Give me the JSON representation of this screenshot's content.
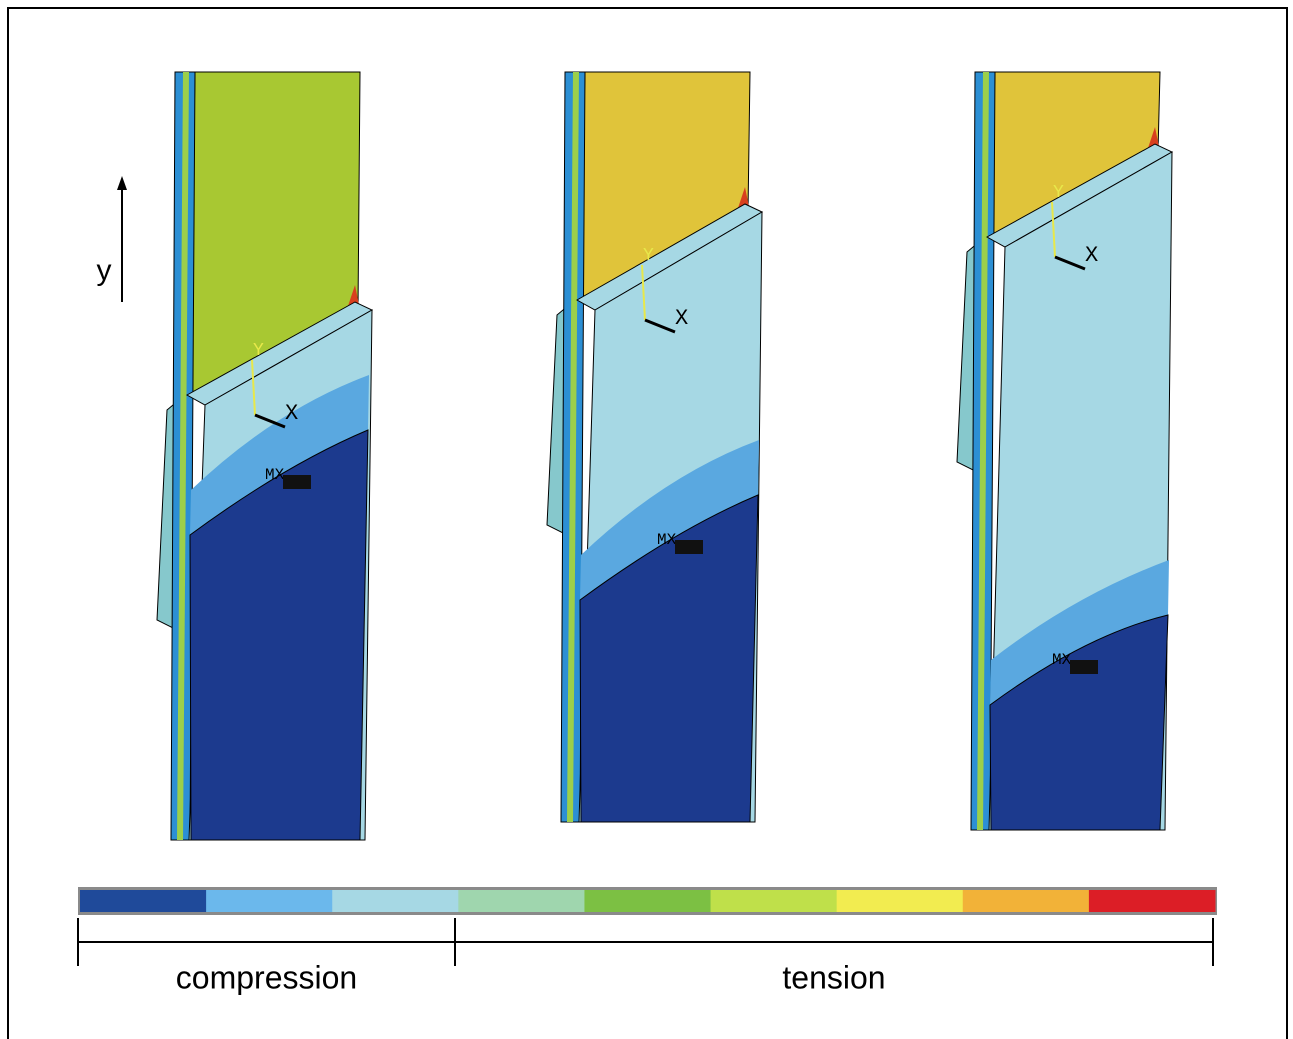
{
  "figure": {
    "axis_label": "y",
    "panels": [
      {
        "x_label": "X",
        "y_label": "Y",
        "marker": "MX"
      },
      {
        "x_label": "X",
        "y_label": "Y",
        "marker": "MX"
      },
      {
        "x_label": "X",
        "y_label": "Y",
        "marker": "MX"
      }
    ],
    "scale": {
      "colors": [
        "#1f4a9a",
        "#6bb8ec",
        "#a6d8e4",
        "#9fd6ae",
        "#7cc043",
        "#bfe04a",
        "#f2ec50",
        "#f2b238",
        "#dc1e26"
      ],
      "labels": [
        "compression",
        "tension"
      ]
    }
  }
}
